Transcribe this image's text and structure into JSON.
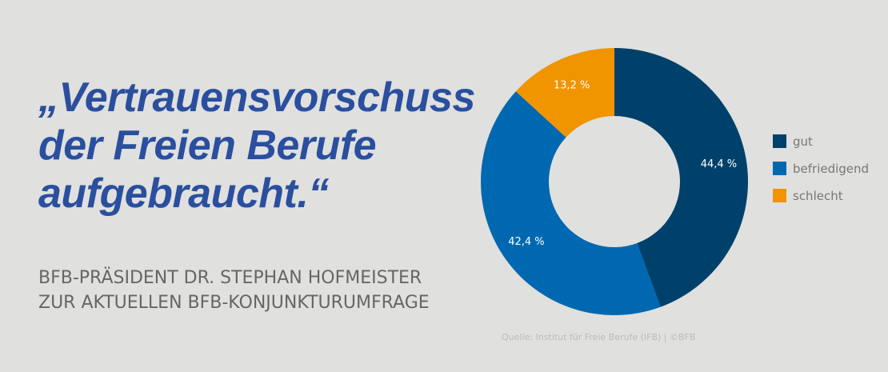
{
  "headline": [
    "„Vertrauensvorschuss",
    "der Freien Berufe",
    "aufgebraucht.“"
  ],
  "subtitle": [
    "BFB-PRÄSIDENT DR. STEPHAN HOFMEISTER",
    "ZUR AKTUELLEN BFB-KONJUNKTURUMFRAGE"
  ],
  "source": "Quelle: Institut für Freie Berufe (IFB) | ©BFB",
  "chart_data": {
    "type": "pie",
    "donut": true,
    "legend_position": "right",
    "categories": [
      "gut",
      "befriedigend",
      "schlecht"
    ],
    "values": [
      44.4,
      42.4,
      13.2
    ],
    "data_labels": [
      "44,4 %",
      "42,4 %",
      "13,2 %"
    ],
    "colors": [
      "#00416b",
      "#0068b0",
      "#f09400"
    ]
  }
}
